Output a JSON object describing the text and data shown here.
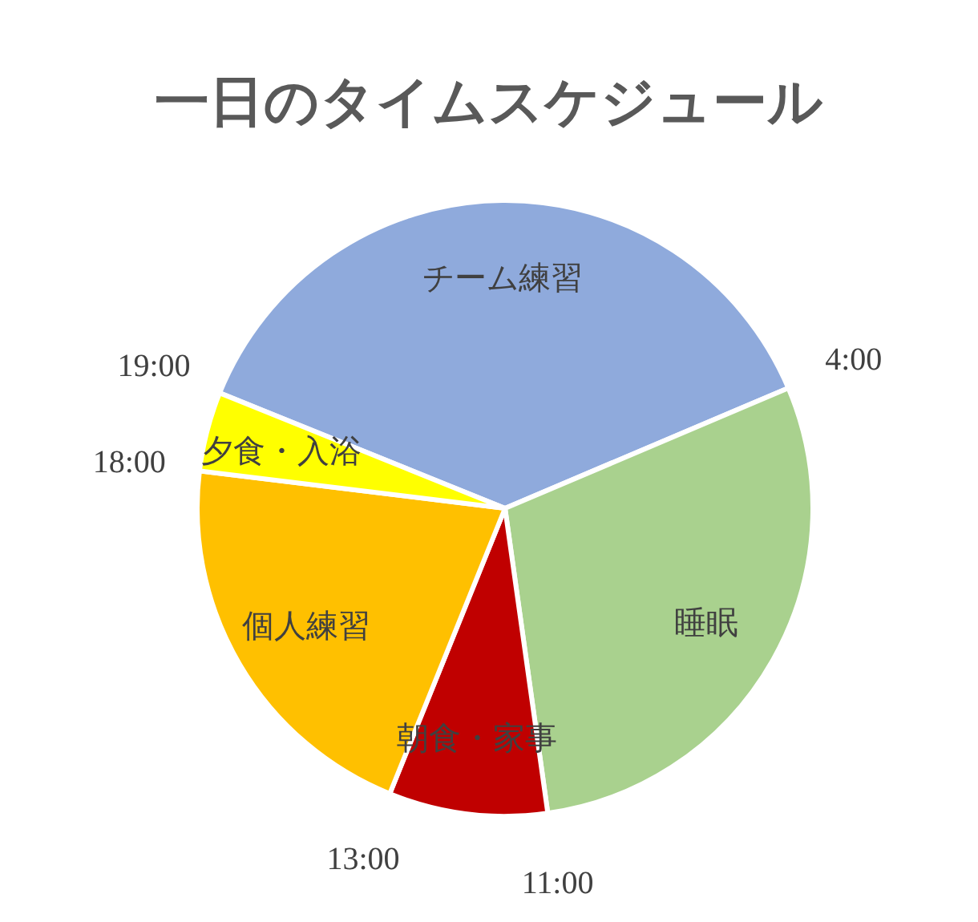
{
  "chart_data": {
    "type": "pie",
    "title": "一日のタイムスケジュール",
    "categories": [
      "チーム練習",
      "睡眠",
      "朝食・家事",
      "個人練習",
      "夕食・入浴"
    ],
    "values": [
      37.5,
      29.17,
      8.33,
      20.83,
      4.17
    ],
    "colors": [
      "#8faadc",
      "#a9d18e",
      "#c00000",
      "#ffc000",
      "#ffff00"
    ],
    "annotations": [
      "4:00",
      "11:00",
      "13:00",
      "18:00",
      "19:00"
    ]
  }
}
